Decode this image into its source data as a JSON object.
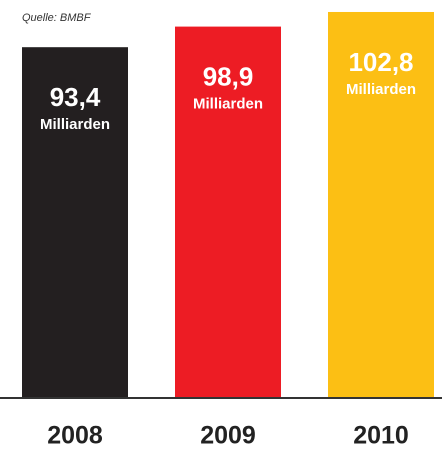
{
  "chart_data": {
    "type": "bar",
    "source": "Quelle: BMBF",
    "categories": [
      "2008",
      "2009",
      "2010"
    ],
    "values": [
      93.4,
      98.9,
      102.8
    ],
    "value_labels": [
      "93,4",
      "98,9",
      "102,8"
    ],
    "value_unit": "Milliarden",
    "colors": [
      "#231f20",
      "#ed1c24",
      "#fcbf14"
    ],
    "ylim": [
      0,
      106
    ]
  }
}
